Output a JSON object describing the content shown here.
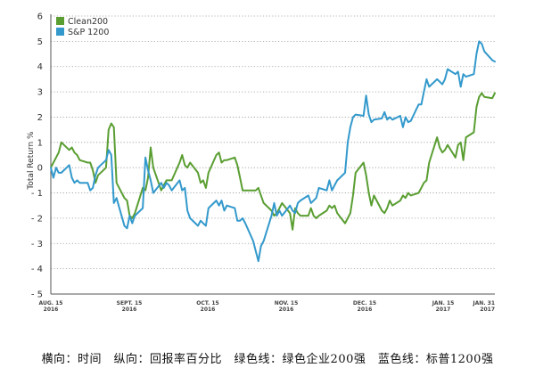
{
  "chart_data": {
    "type": "line",
    "ylabel": "Total Return %",
    "ylim": [
      -5,
      6
    ],
    "yticks": [
      -5,
      -4,
      -3,
      -2,
      -1,
      0,
      1,
      2,
      3,
      4,
      5,
      6
    ],
    "x_ticks": [
      {
        "month": "AUG. 15",
        "year": "2016"
      },
      {
        "month": "SEPT. 15",
        "year": "2016"
      },
      {
        "month": "OCT. 15",
        "year": "2016"
      },
      {
        "month": "NOV. 15",
        "year": "2016"
      },
      {
        "month": "DEC. 15",
        "year": "2016"
      },
      {
        "month": "JAN. 15",
        "year": "2017"
      },
      {
        "month": "JAN. 31",
        "year": "2017"
      }
    ],
    "xlim_dates": [
      "2016-08-15",
      "2017-01-31"
    ],
    "grid": "horizontal dotted",
    "legend": "top-left",
    "series": [
      {
        "name": "Clean200",
        "color": "#5a9e32",
        "points": [
          [
            "2016-08-15",
            0.0
          ],
          [
            "2016-08-16",
            0.2
          ],
          [
            "2016-08-17",
            0.4
          ],
          [
            "2016-08-18",
            0.6
          ],
          [
            "2016-08-19",
            1.0
          ],
          [
            "2016-08-22",
            0.7
          ],
          [
            "2016-08-23",
            0.8
          ],
          [
            "2016-08-24",
            0.6
          ],
          [
            "2016-08-25",
            0.5
          ],
          [
            "2016-08-26",
            0.3
          ],
          [
            "2016-08-29",
            0.2
          ],
          [
            "2016-08-30",
            0.2
          ],
          [
            "2016-08-31",
            -0.1
          ],
          [
            "2016-09-01",
            -0.6
          ],
          [
            "2016-09-02",
            -0.3
          ],
          [
            "2016-09-05",
            0.0
          ],
          [
            "2016-09-06",
            1.5
          ],
          [
            "2016-09-07",
            1.75
          ],
          [
            "2016-09-08",
            1.6
          ],
          [
            "2016-09-09",
            -0.6
          ],
          [
            "2016-09-12",
            -1.2
          ],
          [
            "2016-09-13",
            -1.3
          ],
          [
            "2016-09-14",
            -1.9
          ],
          [
            "2016-09-15",
            -2.0
          ],
          [
            "2016-09-16",
            -1.8
          ],
          [
            "2016-09-19",
            -0.8
          ],
          [
            "2016-09-20",
            -0.9
          ],
          [
            "2016-09-21",
            -0.4
          ],
          [
            "2016-09-22",
            0.8
          ],
          [
            "2016-09-23",
            0.0
          ],
          [
            "2016-09-26",
            -0.9
          ],
          [
            "2016-09-27",
            -0.7
          ],
          [
            "2016-09-28",
            -0.5
          ],
          [
            "2016-09-29",
            -0.5
          ],
          [
            "2016-09-30",
            -0.5
          ],
          [
            "2016-10-03",
            0.2
          ],
          [
            "2016-10-04",
            0.5
          ],
          [
            "2016-10-05",
            0.1
          ],
          [
            "2016-10-06",
            0.0
          ],
          [
            "2016-10-07",
            0.2
          ],
          [
            "2016-10-10",
            -0.2
          ],
          [
            "2016-10-11",
            -0.6
          ],
          [
            "2016-10-12",
            -0.5
          ],
          [
            "2016-10-13",
            -0.8
          ],
          [
            "2016-10-14",
            -0.2
          ],
          [
            "2016-10-17",
            0.5
          ],
          [
            "2016-10-18",
            0.6
          ],
          [
            "2016-10-19",
            0.2
          ],
          [
            "2016-10-20",
            0.3
          ],
          [
            "2016-10-21",
            0.3
          ],
          [
            "2016-10-24",
            0.4
          ],
          [
            "2016-10-25",
            0.1
          ],
          [
            "2016-10-26",
            -0.4
          ],
          [
            "2016-10-27",
            -0.9
          ],
          [
            "2016-10-28",
            -0.9
          ],
          [
            "2016-10-31",
            -0.9
          ],
          [
            "2016-11-01",
            -0.9
          ],
          [
            "2016-11-02",
            -0.8
          ],
          [
            "2016-11-03",
            -1.1
          ],
          [
            "2016-11-04",
            -1.4
          ],
          [
            "2016-11-07",
            -1.7
          ],
          [
            "2016-11-08",
            -1.9
          ],
          [
            "2016-11-09",
            -1.8
          ],
          [
            "2016-11-10",
            -1.6
          ],
          [
            "2016-11-11",
            -1.4
          ],
          [
            "2016-11-14",
            -1.8
          ],
          [
            "2016-11-15",
            -2.45
          ],
          [
            "2016-11-16",
            -1.6
          ],
          [
            "2016-11-17",
            -1.8
          ],
          [
            "2016-11-18",
            -1.9
          ],
          [
            "2016-11-21",
            -1.9
          ],
          [
            "2016-11-22",
            -1.6
          ],
          [
            "2016-11-23",
            -1.9
          ],
          [
            "2016-11-24",
            -2.0
          ],
          [
            "2016-11-25",
            -1.9
          ],
          [
            "2016-11-28",
            -1.7
          ],
          [
            "2016-11-29",
            -1.5
          ],
          [
            "2016-11-30",
            -1.6
          ],
          [
            "2016-12-01",
            -1.5
          ],
          [
            "2016-12-02",
            -1.8
          ],
          [
            "2016-12-05",
            -2.2
          ],
          [
            "2016-12-06",
            -2.0
          ],
          [
            "2016-12-07",
            -1.8
          ],
          [
            "2016-12-08",
            -1.1
          ],
          [
            "2016-12-09",
            -0.2
          ],
          [
            "2016-12-12",
            0.2
          ],
          [
            "2016-12-13",
            -0.3
          ],
          [
            "2016-12-14",
            -1.0
          ],
          [
            "2016-12-15",
            -1.5
          ],
          [
            "2016-12-16",
            -1.1
          ],
          [
            "2016-12-19",
            -1.7
          ],
          [
            "2016-12-20",
            -1.8
          ],
          [
            "2016-12-21",
            -1.6
          ],
          [
            "2016-12-22",
            -1.3
          ],
          [
            "2016-12-23",
            -1.5
          ],
          [
            "2016-12-26",
            -1.3
          ],
          [
            "2016-12-27",
            -1.1
          ],
          [
            "2016-12-28",
            -1.2
          ],
          [
            "2016-12-29",
            -1.0
          ],
          [
            "2016-12-30",
            -1.1
          ],
          [
            "2017-01-02",
            -1.0
          ],
          [
            "2017-01-03",
            -0.8
          ],
          [
            "2017-01-04",
            -0.6
          ],
          [
            "2017-01-05",
            -0.5
          ],
          [
            "2017-01-06",
            0.2
          ],
          [
            "2017-01-09",
            1.2
          ],
          [
            "2017-01-10",
            0.8
          ],
          [
            "2017-01-11",
            0.6
          ],
          [
            "2017-01-12",
            0.7
          ],
          [
            "2017-01-13",
            0.9
          ],
          [
            "2017-01-16",
            0.4
          ],
          [
            "2017-01-17",
            0.9
          ],
          [
            "2017-01-18",
            1.0
          ],
          [
            "2017-01-19",
            0.3
          ],
          [
            "2017-01-20",
            1.2
          ],
          [
            "2017-01-23",
            1.4
          ],
          [
            "2017-01-24",
            2.4
          ],
          [
            "2017-01-25",
            2.8
          ],
          [
            "2017-01-26",
            2.95
          ],
          [
            "2017-01-27",
            2.8
          ],
          [
            "2017-01-30",
            2.75
          ],
          [
            "2017-01-31",
            2.95
          ]
        ]
      },
      {
        "name": "S&P 1200",
        "color": "#3399cc",
        "points": [
          [
            "2016-08-15",
            0.0
          ],
          [
            "2016-08-16",
            -0.4
          ],
          [
            "2016-08-17",
            0.0
          ],
          [
            "2016-08-18",
            -0.2
          ],
          [
            "2016-08-19",
            -0.2
          ],
          [
            "2016-08-22",
            0.1
          ],
          [
            "2016-08-23",
            -0.4
          ],
          [
            "2016-08-24",
            -0.6
          ],
          [
            "2016-08-25",
            -0.5
          ],
          [
            "2016-08-26",
            -0.6
          ],
          [
            "2016-08-29",
            -0.6
          ],
          [
            "2016-08-30",
            -0.9
          ],
          [
            "2016-08-31",
            -0.8
          ],
          [
            "2016-09-01",
            -0.3
          ],
          [
            "2016-09-02",
            0.0
          ],
          [
            "2016-09-05",
            0.3
          ],
          [
            "2016-09-06",
            0.7
          ],
          [
            "2016-09-07",
            0.5
          ],
          [
            "2016-09-08",
            -1.4
          ],
          [
            "2016-09-09",
            -1.2
          ],
          [
            "2016-09-12",
            -2.3
          ],
          [
            "2016-09-13",
            -2.4
          ],
          [
            "2016-09-14",
            -1.9
          ],
          [
            "2016-09-15",
            -2.2
          ],
          [
            "2016-09-16",
            -1.9
          ],
          [
            "2016-09-19",
            -1.6
          ],
          [
            "2016-09-20",
            0.4
          ],
          [
            "2016-09-21",
            -0.1
          ],
          [
            "2016-09-22",
            -0.5
          ],
          [
            "2016-09-23",
            -1.0
          ],
          [
            "2016-09-26",
            -0.6
          ],
          [
            "2016-09-27",
            -0.8
          ],
          [
            "2016-09-28",
            -0.6
          ],
          [
            "2016-09-29",
            -0.7
          ],
          [
            "2016-09-30",
            -0.9
          ],
          [
            "2016-10-03",
            -0.5
          ],
          [
            "2016-10-04",
            -0.9
          ],
          [
            "2016-10-05",
            -0.8
          ],
          [
            "2016-10-06",
            -1.7
          ],
          [
            "2016-10-07",
            -2.0
          ],
          [
            "2016-10-10",
            -2.3
          ],
          [
            "2016-10-11",
            -2.1
          ],
          [
            "2016-10-12",
            -2.2
          ],
          [
            "2016-10-13",
            -2.3
          ],
          [
            "2016-10-14",
            -1.6
          ],
          [
            "2016-10-17",
            -1.3
          ],
          [
            "2016-10-18",
            -1.5
          ],
          [
            "2016-10-19",
            -1.3
          ],
          [
            "2016-10-20",
            -1.7
          ],
          [
            "2016-10-21",
            -1.5
          ],
          [
            "2016-10-24",
            -1.6
          ],
          [
            "2016-10-25",
            -2.1
          ],
          [
            "2016-10-26",
            -2.1
          ],
          [
            "2016-10-27",
            -2.0
          ],
          [
            "2016-10-28",
            -2.2
          ],
          [
            "2016-10-31",
            -2.9
          ],
          [
            "2016-11-01",
            -3.3
          ],
          [
            "2016-11-02",
            -3.7
          ],
          [
            "2016-11-03",
            -3.1
          ],
          [
            "2016-11-04",
            -2.9
          ],
          [
            "2016-11-07",
            -1.9
          ],
          [
            "2016-11-08",
            -1.4
          ],
          [
            "2016-11-09",
            -1.9
          ],
          [
            "2016-11-10",
            -1.7
          ],
          [
            "2016-11-11",
            -1.9
          ],
          [
            "2016-11-14",
            -1.5
          ],
          [
            "2016-11-15",
            -1.7
          ],
          [
            "2016-11-16",
            -1.8
          ],
          [
            "2016-11-17",
            -1.4
          ],
          [
            "2016-11-18",
            -1.3
          ],
          [
            "2016-11-21",
            -1.1
          ],
          [
            "2016-11-22",
            -1.4
          ],
          [
            "2016-11-23",
            -1.3
          ],
          [
            "2016-11-24",
            -1.2
          ],
          [
            "2016-11-25",
            -0.8
          ],
          [
            "2016-11-28",
            -0.9
          ],
          [
            "2016-11-29",
            -0.5
          ],
          [
            "2016-11-30",
            -0.9
          ],
          [
            "2016-12-01",
            -0.7
          ],
          [
            "2016-12-02",
            -0.5
          ],
          [
            "2016-12-05",
            -0.2
          ],
          [
            "2016-12-06",
            1.0
          ],
          [
            "2016-12-07",
            1.6
          ],
          [
            "2016-12-08",
            2.0
          ],
          [
            "2016-12-09",
            2.1
          ],
          [
            "2016-12-12",
            2.05
          ],
          [
            "2016-12-13",
            2.85
          ],
          [
            "2016-12-14",
            2.1
          ],
          [
            "2016-12-15",
            1.8
          ],
          [
            "2016-12-16",
            1.9
          ],
          [
            "2016-12-19",
            1.95
          ],
          [
            "2016-12-20",
            2.2
          ],
          [
            "2016-12-21",
            1.9
          ],
          [
            "2016-12-22",
            2.0
          ],
          [
            "2016-12-23",
            1.9
          ],
          [
            "2016-12-26",
            2.05
          ],
          [
            "2016-12-27",
            1.6
          ],
          [
            "2016-12-28",
            2.0
          ],
          [
            "2016-12-29",
            1.8
          ],
          [
            "2016-12-30",
            1.85
          ],
          [
            "2017-01-02",
            2.5
          ],
          [
            "2017-01-03",
            2.5
          ],
          [
            "2017-01-04",
            3.0
          ],
          [
            "2017-01-05",
            3.5
          ],
          [
            "2017-01-06",
            3.2
          ],
          [
            "2017-01-09",
            3.5
          ],
          [
            "2017-01-10",
            3.4
          ],
          [
            "2017-01-11",
            3.3
          ],
          [
            "2017-01-12",
            3.5
          ],
          [
            "2017-01-13",
            3.9
          ],
          [
            "2017-01-16",
            3.7
          ],
          [
            "2017-01-17",
            3.8
          ],
          [
            "2017-01-18",
            3.2
          ],
          [
            "2017-01-19",
            3.7
          ],
          [
            "2017-01-20",
            3.6
          ],
          [
            "2017-01-23",
            3.7
          ],
          [
            "2017-01-24",
            4.5
          ],
          [
            "2017-01-25",
            5.0
          ],
          [
            "2017-01-26",
            4.9
          ],
          [
            "2017-01-27",
            4.6
          ],
          [
            "2017-01-30",
            4.25
          ],
          [
            "2017-01-31",
            4.2
          ]
        ]
      }
    ]
  },
  "caption": "横向：时间　纵向：回报率百分比　绿色线：绿色企业200强　蓝色线：标普1200强"
}
